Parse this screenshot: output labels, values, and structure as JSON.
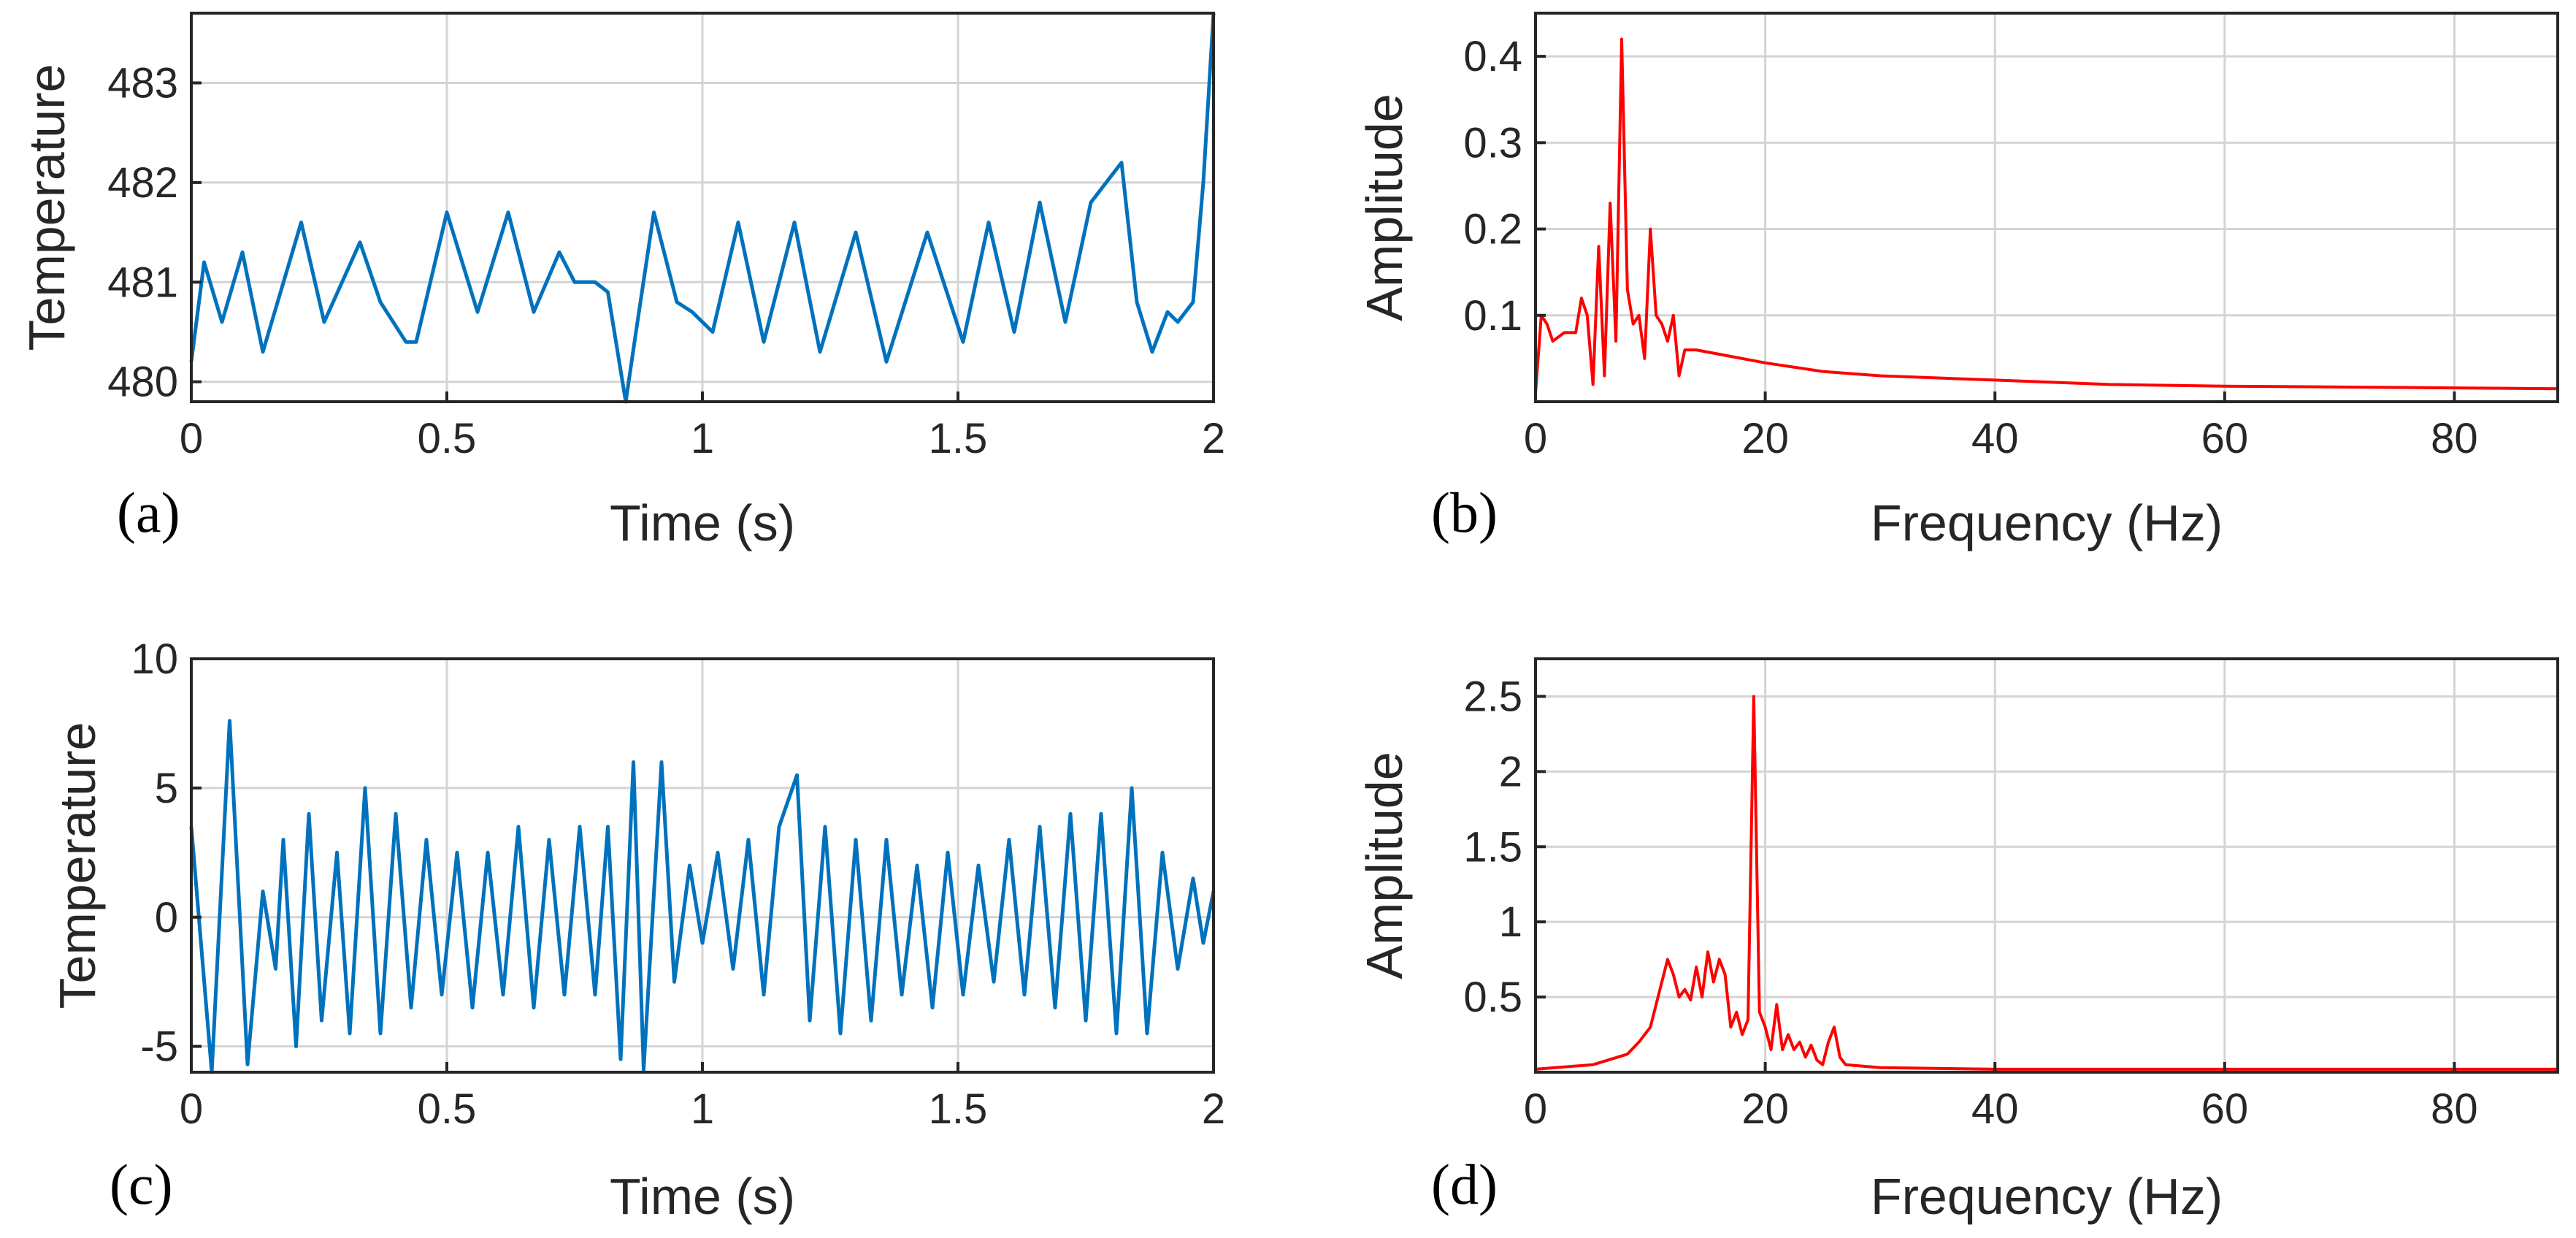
{
  "figure": {
    "colors": {
      "time_series": "#0072bd",
      "spectrum": "#ff0000",
      "axis": "#262626",
      "grid": "#d4d4d4"
    }
  },
  "chart_data": [
    {
      "id": "a",
      "panel_label": "(a)",
      "type": "line",
      "xlabel": "Time (s)",
      "ylabel": "Temperature",
      "xlim": [
        0,
        2
      ],
      "ylim": [
        479.8,
        483.7
      ],
      "xticks": [
        0,
        0.5,
        1,
        1.5,
        2
      ],
      "xtick_labels": [
        "0",
        "0.5",
        "1",
        "1.5",
        "2"
      ],
      "yticks": [
        480,
        481,
        482,
        483
      ],
      "ytick_labels": [
        "480",
        "481",
        "482",
        "483"
      ],
      "grid": true,
      "color": "#0072bd",
      "series": [
        {
          "name": "temperature",
          "x": [
            0,
            0.025,
            0.06,
            0.1,
            0.14,
            0.215,
            0.26,
            0.33,
            0.37,
            0.42,
            0.44,
            0.5,
            0.56,
            0.62,
            0.67,
            0.72,
            0.75,
            0.79,
            0.815,
            0.85,
            0.87,
            0.905,
            0.95,
            0.98,
            1.02,
            1.07,
            1.12,
            1.18,
            1.23,
            1.3,
            1.36,
            1.44,
            1.51,
            1.56,
            1.61,
            1.66,
            1.71,
            1.76,
            1.82,
            1.85,
            1.88,
            1.91,
            1.93,
            1.96,
            1.98,
            2.0
          ],
          "y": [
            480.2,
            481.2,
            480.6,
            481.3,
            480.3,
            481.6,
            480.6,
            481.4,
            480.8,
            480.4,
            480.4,
            481.7,
            480.7,
            481.7,
            480.7,
            481.3,
            481.0,
            481.0,
            480.9,
            479.8,
            480.5,
            481.7,
            480.8,
            480.7,
            480.5,
            481.6,
            480.4,
            481.6,
            480.3,
            481.5,
            480.2,
            481.5,
            480.4,
            481.6,
            480.5,
            481.8,
            480.6,
            481.8,
            482.2,
            480.8,
            480.3,
            480.7,
            480.6,
            480.8,
            482.0,
            483.7
          ]
        }
      ]
    },
    {
      "id": "b",
      "panel_label": "(b)",
      "type": "line",
      "xlabel": "Frequency (Hz)",
      "ylabel": "Amplitude",
      "xlim": [
        0,
        89
      ],
      "ylim": [
        0,
        0.45
      ],
      "xticks": [
        0,
        20,
        40,
        60,
        80
      ],
      "xtick_labels": [
        "0",
        "20",
        "40",
        "60",
        "80"
      ],
      "yticks": [
        0.1,
        0.2,
        0.3,
        0.4
      ],
      "ytick_labels": [
        "0.1",
        "0.2",
        "0.3",
        "0.4"
      ],
      "grid": true,
      "color": "#ff0000",
      "series": [
        {
          "name": "amplitude",
          "x": [
            0,
            0.5,
            1,
            1.5,
            2.5,
            3.5,
            4,
            4.5,
            5,
            5.5,
            6,
            6.5,
            7,
            7.5,
            8,
            8.5,
            9,
            9.5,
            10,
            10.5,
            11,
            11.5,
            12,
            12.5,
            13,
            14,
            16,
            20,
            25,
            30,
            40,
            50,
            60,
            70,
            80,
            89
          ],
          "y": [
            0.01,
            0.1,
            0.09,
            0.07,
            0.08,
            0.08,
            0.12,
            0.1,
            0.02,
            0.18,
            0.03,
            0.23,
            0.07,
            0.42,
            0.13,
            0.09,
            0.1,
            0.05,
            0.2,
            0.1,
            0.09,
            0.07,
            0.1,
            0.03,
            0.06,
            0.06,
            0.055,
            0.045,
            0.035,
            0.03,
            0.025,
            0.02,
            0.018,
            0.017,
            0.016,
            0.015
          ]
        }
      ]
    },
    {
      "id": "c",
      "panel_label": "(c)",
      "type": "line",
      "xlabel": "Time (s)",
      "ylabel": "Temperature",
      "xlim": [
        0,
        2
      ],
      "ylim": [
        -6,
        10
      ],
      "xticks": [
        0,
        0.5,
        1,
        1.5,
        2
      ],
      "xtick_labels": [
        "0",
        "0.5",
        "1",
        "1.5",
        "2"
      ],
      "yticks": [
        -5,
        0,
        5,
        10
      ],
      "ytick_labels": [
        "-5",
        "0",
        "5",
        "10"
      ],
      "grid": true,
      "color": "#0072bd",
      "series": [
        {
          "name": "temperature",
          "x": [
            0,
            0.04,
            0.075,
            0.11,
            0.14,
            0.165,
            0.18,
            0.205,
            0.23,
            0.255,
            0.285,
            0.31,
            0.34,
            0.37,
            0.4,
            0.43,
            0.46,
            0.49,
            0.52,
            0.55,
            0.58,
            0.61,
            0.64,
            0.67,
            0.7,
            0.73,
            0.76,
            0.79,
            0.815,
            0.84,
            0.865,
            0.885,
            0.92,
            0.945,
            0.975,
            1.0,
            1.03,
            1.06,
            1.09,
            1.12,
            1.15,
            1.185,
            1.21,
            1.24,
            1.27,
            1.3,
            1.33,
            1.36,
            1.39,
            1.42,
            1.45,
            1.48,
            1.51,
            1.54,
            1.57,
            1.6,
            1.63,
            1.66,
            1.69,
            1.72,
            1.75,
            1.78,
            1.81,
            1.84,
            1.87,
            1.9,
            1.93,
            1.96,
            1.98,
            2.0
          ],
          "y": [
            3.5,
            -6,
            7.6,
            -5.7,
            1,
            -2,
            3,
            -5,
            4,
            -4,
            2.5,
            -4.5,
            5,
            -4.5,
            4,
            -3.5,
            3,
            -3,
            2.5,
            -3.5,
            2.5,
            -3,
            3.5,
            -3.5,
            3,
            -3,
            3.5,
            -3,
            3.5,
            -5.5,
            6,
            -5.9,
            6,
            -2.5,
            2,
            -1,
            2.5,
            -2,
            3,
            -3,
            3.5,
            5.5,
            -4,
            3.5,
            -4.5,
            3,
            -4,
            3,
            -3,
            2,
            -3.5,
            2.5,
            -3,
            2,
            -2.5,
            3,
            -3,
            3.5,
            -3.5,
            4,
            -4,
            4,
            -4.5,
            5,
            -4.5,
            2.5,
            -2,
            1.5,
            -1,
            1
          ]
        }
      ]
    },
    {
      "id": "d",
      "panel_label": "(d)",
      "type": "line",
      "xlabel": "Frequency (Hz)",
      "ylabel": "Amplitude",
      "xlim": [
        0,
        89
      ],
      "ylim": [
        0,
        2.75
      ],
      "xticks": [
        0,
        20,
        40,
        60,
        80
      ],
      "xtick_labels": [
        "0",
        "20",
        "40",
        "60",
        "80"
      ],
      "yticks": [
        0.5,
        1,
        1.5,
        2,
        2.5
      ],
      "ytick_labels": [
        "0.5",
        "1",
        "1.5",
        "2",
        "2.5"
      ],
      "grid": true,
      "color": "#ff0000",
      "series": [
        {
          "name": "amplitude",
          "x": [
            0,
            5,
            8,
            9,
            10,
            11,
            11.5,
            12,
            12.5,
            13,
            13.5,
            14,
            14.5,
            15,
            15.5,
            16,
            16.5,
            17,
            17.5,
            18,
            18.5,
            19,
            19.5,
            20,
            20.5,
            21,
            21.5,
            22,
            22.5,
            23,
            23.5,
            24,
            24.5,
            25,
            25.5,
            26,
            26.5,
            27,
            30,
            40,
            60,
            89
          ],
          "y": [
            0.02,
            0.05,
            0.12,
            0.2,
            0.3,
            0.6,
            0.75,
            0.65,
            0.5,
            0.55,
            0.48,
            0.7,
            0.5,
            0.8,
            0.6,
            0.75,
            0.65,
            0.3,
            0.4,
            0.25,
            0.35,
            2.5,
            0.4,
            0.3,
            0.15,
            0.45,
            0.15,
            0.25,
            0.15,
            0.2,
            0.1,
            0.18,
            0.08,
            0.05,
            0.2,
            0.3,
            0.1,
            0.05,
            0.03,
            0.02,
            0.02,
            0.02
          ]
        }
      ]
    }
  ]
}
